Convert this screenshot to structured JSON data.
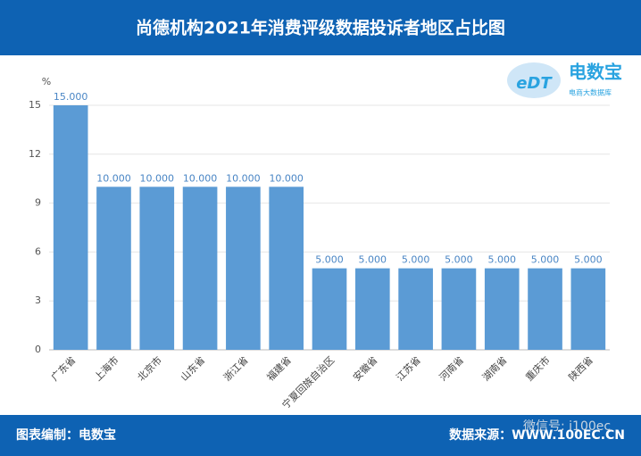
{
  "chart_data": {
    "type": "bar",
    "title": "尚德机构2021年消费评级数据投诉者地区占比图",
    "y_label": "%",
    "categories": [
      "广东省",
      "上海市",
      "北京市",
      "山东省",
      "浙江省",
      "福建省",
      "宁夏回族自治区",
      "安徽省",
      "江苏省",
      "河南省",
      "湖南省",
      "重庆市",
      "陕西省"
    ],
    "values": [
      15,
      10,
      10,
      10,
      10,
      10,
      5,
      5,
      5,
      5,
      5,
      5,
      5
    ],
    "value_labels": [
      "15.000",
      "10.000",
      "10.000",
      "10.000",
      "10.000",
      "10.000",
      "5.000",
      "5.000",
      "5.000",
      "5.000",
      "5.000",
      "5.000",
      "5.000"
    ],
    "color": "#5b9bd5",
    "ylim": [
      0,
      15
    ],
    "yticks": [
      0,
      3,
      6,
      9,
      12,
      15
    ],
    "grid": true
  },
  "logo": {
    "mark": "eDT",
    "name": "电数宝",
    "tagline": "电商大数据库"
  },
  "footer": {
    "left": "图表编制：电数宝",
    "right": "数据来源：WWW.100EC.CN",
    "watermark": "微信号: i100ec"
  }
}
